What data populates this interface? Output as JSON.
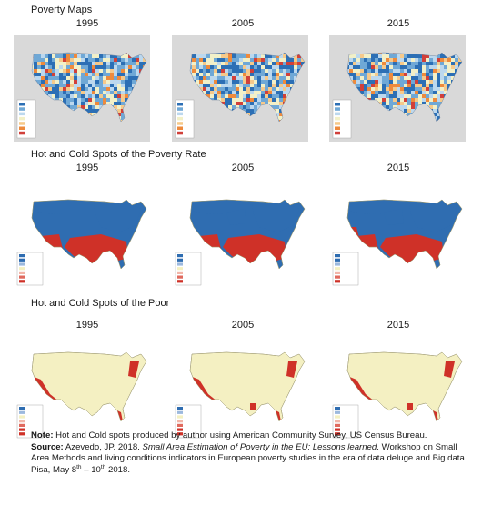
{
  "sections": [
    {
      "title": "Poverty Maps",
      "years": [
        "1995",
        "2005",
        "2015"
      ],
      "style": "choropleth",
      "colors": [
        "#2c6fb5",
        "#6fa8d6",
        "#bcd8ee",
        "#f2f0c8",
        "#f6c98a",
        "#ee8a3c",
        "#d1403a"
      ]
    },
    {
      "title": "Hot and Cold Spots of the Poverty Rate",
      "years": [
        "1995",
        "2005",
        "2015"
      ],
      "style": "hotspot",
      "colors": [
        "#2f6db1",
        "#f4f0c2",
        "#cf3128"
      ]
    },
    {
      "title": "Hot and Cold Spots of the Poor",
      "years": [
        "1995",
        "2005",
        "2015"
      ],
      "style": "poor",
      "colors": [
        "#f4f0c2",
        "#cf3128",
        "#2f6db1"
      ]
    }
  ],
  "note": {
    "note_label": "Note:",
    "note_text": " Hot and Cold spots produced by author using American Community Survey, US Census Bureau.",
    "source_label": "Source:",
    "source_author": " Azevedo, JP. 2018. ",
    "source_title": "Small Area Estimation of Poverty in the EU: Lessons learned",
    "source_text": ". Workshop on Small Area Methods and living conditions indicators in European poverty studies in the era of data deluge and Big data. Pisa, May 8",
    "sup1": "th",
    "dash": " – 10",
    "sup2": "th",
    "end": " 2018."
  }
}
